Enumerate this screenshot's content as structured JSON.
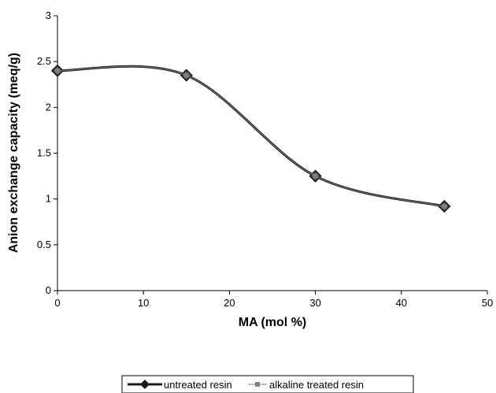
{
  "chart_data": {
    "type": "line",
    "title": "",
    "xlabel": "MA (mol %)",
    "ylabel": "Anion exchange capacity (meq/g)",
    "xlim": [
      0,
      50
    ],
    "ylim": [
      0,
      3
    ],
    "x_ticks": [
      "0",
      "10",
      "20",
      "30",
      "40",
      "50"
    ],
    "y_ticks": [
      "0",
      "0.5",
      "1",
      "1.5",
      "2",
      "2.5",
      "3"
    ],
    "grid": false,
    "legend_position": "bottom",
    "series": [
      {
        "name": "untreated resin",
        "x": [
          0,
          15,
          30,
          45
        ],
        "y": [
          2.4,
          2.35,
          1.25,
          0.92
        ],
        "color": "#1a1a1a",
        "marker": "diamond"
      },
      {
        "name": "alkaline treated resin",
        "x": [
          0,
          15,
          30,
          45
        ],
        "y": [
          2.4,
          2.35,
          1.25,
          0.92
        ],
        "color": "#808080",
        "marker": "square"
      }
    ]
  }
}
